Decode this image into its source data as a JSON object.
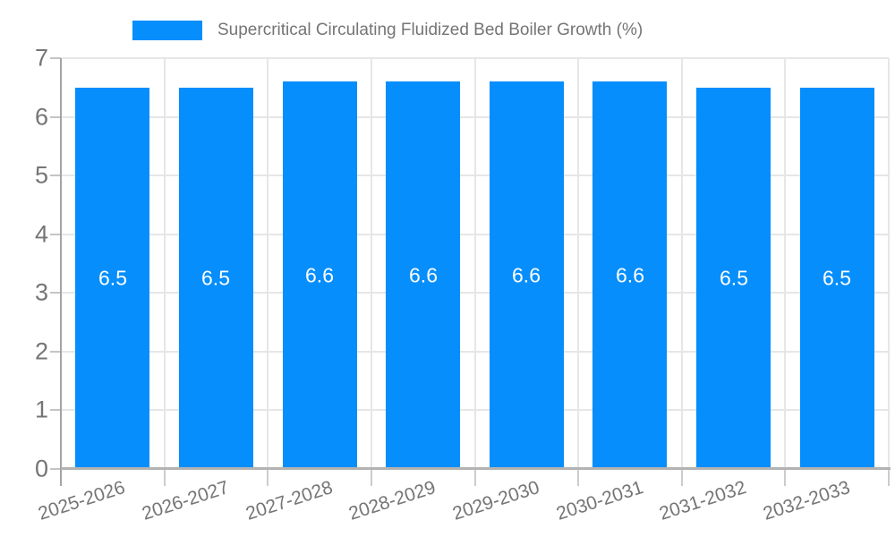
{
  "chart_data": {
    "type": "bar",
    "title": "Supercritical Circulating Fluidized Bed Boiler Growth (%)",
    "categories": [
      "2025-2026",
      "2026-2027",
      "2027-2028",
      "2028-2029",
      "2029-2030",
      "2030-2031",
      "2031-2032",
      "2032-2033"
    ],
    "values": [
      6.5,
      6.5,
      6.6,
      6.6,
      6.6,
      6.6,
      6.5,
      6.5
    ],
    "bar_labels": [
      "6.5",
      "6.5",
      "6.6",
      "6.6",
      "6.6",
      "6.6",
      "6.5",
      "6.5"
    ],
    "xlabel": "",
    "ylabel": "",
    "ylim": [
      0,
      7
    ],
    "y_ticks": [
      "0",
      "1",
      "2",
      "3",
      "4",
      "5",
      "6",
      "7"
    ],
    "grid": true,
    "legend_position": "top",
    "colors": {
      "bar": "#058efc",
      "grid": "#e6e6e6",
      "axis": "#aaaaaa",
      "tick_text": "#757575",
      "bar_label_text": "#ffffff",
      "background": "#ffffff"
    }
  }
}
